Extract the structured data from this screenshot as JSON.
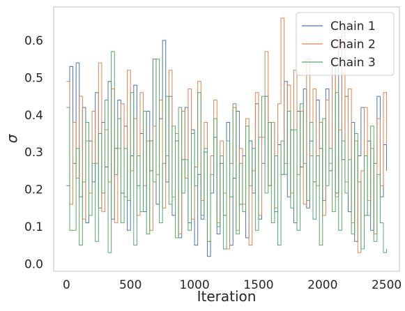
{
  "chart_data": {
    "type": "line",
    "xlabel": "Iteration",
    "ylabel": "σ",
    "xlim": [
      -100,
      2600
    ],
    "ylim": [
      -0.02,
      0.69
    ],
    "xticks": [
      0,
      500,
      1000,
      1500,
      2000,
      2500
    ],
    "yticks": [
      0.0,
      0.1,
      0.2,
      0.3,
      0.4,
      0.5,
      0.6
    ],
    "ytick_labels": [
      "0.0",
      "0.1",
      "0.2",
      "0.3",
      "0.4",
      "0.5",
      "0.6"
    ],
    "grid": false,
    "legend_position": "top-right",
    "series": [
      {
        "name": "Chain 1",
        "color": "#4c72b0",
        "x": [
          0,
          25,
          50,
          75,
          100,
          125,
          150,
          175,
          200,
          225,
          250,
          275,
          300,
          325,
          350,
          375,
          400,
          425,
          450,
          475,
          500,
          525,
          550,
          575,
          600,
          625,
          650,
          675,
          700,
          725,
          750,
          775,
          800,
          825,
          850,
          875,
          900,
          925,
          950,
          975,
          1000,
          1025,
          1050,
          1075,
          1100,
          1125,
          1150,
          1175,
          1200,
          1225,
          1250,
          1275,
          1300,
          1325,
          1350,
          1375,
          1400,
          1425,
          1450,
          1475,
          1500,
          1525,
          1550,
          1575,
          1600,
          1625,
          1650,
          1675,
          1700,
          1725,
          1750,
          1775,
          1800,
          1825,
          1850,
          1875,
          1900,
          1925,
          1950,
          1975,
          2000,
          2025,
          2050,
          2075,
          2100,
          2125,
          2150,
          2175,
          2200,
          2225,
          2250,
          2275,
          2300,
          2325,
          2350,
          2375,
          2400,
          2425,
          2450,
          2475,
          2499
        ],
        "y": [
          0.21,
          0.53,
          0.27,
          0.54,
          0.18,
          0.42,
          0.11,
          0.33,
          0.22,
          0.46,
          0.15,
          0.38,
          0.26,
          0.49,
          0.12,
          0.31,
          0.44,
          0.19,
          0.37,
          0.09,
          0.29,
          0.48,
          0.21,
          0.35,
          0.14,
          0.41,
          0.25,
          0.55,
          0.16,
          0.39,
          0.6,
          0.22,
          0.45,
          0.13,
          0.33,
          0.07,
          0.28,
          0.42,
          0.11,
          0.36,
          0.05,
          0.24,
          0.12,
          0.3,
          0.02,
          0.19,
          0.34,
          0.08,
          0.27,
          0.13,
          0.38,
          0.05,
          0.23,
          0.41,
          0.16,
          0.29,
          0.07,
          0.33,
          0.19,
          0.43,
          0.12,
          0.27,
          0.45,
          0.21,
          0.38,
          0.14,
          0.32,
          0.24,
          0.49,
          0.18,
          0.36,
          0.11,
          0.41,
          0.26,
          0.47,
          0.15,
          0.33,
          0.22,
          0.44,
          0.31,
          0.17,
          0.47,
          0.25,
          0.53,
          0.19,
          0.61,
          0.28,
          0.45,
          0.14,
          0.38,
          0.06,
          0.29,
          0.42,
          0.13,
          0.33,
          0.09,
          0.27,
          0.45,
          0.18,
          0.32,
          0.25
        ]
      },
      {
        "name": "Chain 2",
        "color": "#dd8452",
        "x": [
          0,
          25,
          50,
          75,
          100,
          125,
          150,
          175,
          200,
          225,
          250,
          275,
          300,
          325,
          350,
          375,
          400,
          425,
          450,
          475,
          500,
          525,
          550,
          575,
          600,
          625,
          650,
          675,
          700,
          725,
          750,
          775,
          800,
          825,
          850,
          875,
          900,
          925,
          950,
          975,
          1000,
          1025,
          1050,
          1075,
          1100,
          1125,
          1150,
          1175,
          1200,
          1225,
          1250,
          1275,
          1300,
          1325,
          1350,
          1375,
          1400,
          1425,
          1450,
          1475,
          1500,
          1525,
          1550,
          1575,
          1600,
          1625,
          1650,
          1675,
          1700,
          1725,
          1750,
          1775,
          1800,
          1825,
          1850,
          1875,
          1900,
          1925,
          1950,
          1975,
          2000,
          2025,
          2050,
          2075,
          2100,
          2125,
          2150,
          2175,
          2200,
          2225,
          2250,
          2275,
          2300,
          2325,
          2350,
          2375,
          2400,
          2425,
          2450,
          2475,
          2499
        ],
        "y": [
          0.49,
          0.16,
          0.38,
          0.23,
          0.45,
          0.12,
          0.33,
          0.19,
          0.41,
          0.27,
          0.54,
          0.14,
          0.36,
          0.22,
          0.47,
          0.11,
          0.31,
          0.43,
          0.18,
          0.52,
          0.25,
          0.39,
          0.13,
          0.46,
          0.21,
          0.33,
          0.09,
          0.37,
          0.24,
          0.44,
          0.15,
          0.29,
          0.52,
          0.18,
          0.35,
          0.08,
          0.41,
          0.23,
          0.47,
          0.12,
          0.26,
          0.49,
          0.17,
          0.38,
          0.06,
          0.29,
          0.44,
          0.11,
          0.33,
          0.19,
          0.04,
          0.27,
          0.42,
          0.09,
          0.31,
          0.16,
          0.39,
          0.05,
          0.25,
          0.46,
          0.13,
          0.34,
          0.57,
          0.21,
          0.38,
          0.15,
          0.43,
          0.66,
          0.27,
          0.48,
          0.19,
          0.52,
          0.24,
          0.41,
          0.16,
          0.55,
          0.29,
          0.47,
          0.21,
          0.38,
          0.13,
          0.44,
          0.27,
          0.51,
          0.18,
          0.36,
          0.62,
          0.22,
          0.47,
          0.11,
          0.33,
          0.03,
          0.25,
          0.42,
          0.17,
          0.31,
          0.08,
          0.39,
          0.21,
          0.46,
          0.32
        ]
      },
      {
        "name": "Chain 3",
        "color": "#55a868",
        "x": [
          0,
          25,
          50,
          75,
          100,
          125,
          150,
          175,
          200,
          225,
          250,
          275,
          300,
          325,
          350,
          375,
          400,
          425,
          450,
          475,
          500,
          525,
          550,
          575,
          600,
          625,
          650,
          675,
          700,
          725,
          750,
          775,
          800,
          825,
          850,
          875,
          900,
          925,
          950,
          975,
          1000,
          1025,
          1050,
          1075,
          1100,
          1125,
          1150,
          1175,
          1200,
          1225,
          1250,
          1275,
          1300,
          1325,
          1350,
          1375,
          1400,
          1425,
          1450,
          1475,
          1500,
          1525,
          1550,
          1575,
          1600,
          1625,
          1650,
          1675,
          1700,
          1725,
          1750,
          1775,
          1800,
          1825,
          1850,
          1875,
          1900,
          1925,
          1950,
          1975,
          2000,
          2025,
          2050,
          2075,
          2100,
          2125,
          2150,
          2175,
          2200,
          2225,
          2250,
          2275,
          2300,
          2325,
          2350,
          2375,
          2400,
          2425,
          2450,
          2475,
          2499
        ],
        "y": [
          0.42,
          0.09,
          0.09,
          0.31,
          0.05,
          0.22,
          0.38,
          0.13,
          0.27,
          0.06,
          0.35,
          0.19,
          0.44,
          0.03,
          0.57,
          0.24,
          0.39,
          0.11,
          0.31,
          0.17,
          0.46,
          0.05,
          0.29,
          0.14,
          0.41,
          0.08,
          0.33,
          0.22,
          0.55,
          0.11,
          0.27,
          0.45,
          0.16,
          0.37,
          0.07,
          0.42,
          0.19,
          0.28,
          0.09,
          0.35,
          0.21,
          0.46,
          0.13,
          0.31,
          0.06,
          0.24,
          0.39,
          0.1,
          0.29,
          0.04,
          0.33,
          0.18,
          0.43,
          0.08,
          0.27,
          0.14,
          0.37,
          0.21,
          0.31,
          0.09,
          0.34,
          0.45,
          0.19,
          0.38,
          0.11,
          0.29,
          0.05,
          0.33,
          0.24,
          0.41,
          0.15,
          0.36,
          0.09,
          0.43,
          0.27,
          0.17,
          0.38,
          0.12,
          0.29,
          0.05,
          0.39,
          0.21,
          0.31,
          0.14,
          0.46,
          0.09,
          0.33,
          0.19,
          0.28,
          0.08,
          0.35,
          0.22,
          0.04,
          0.29,
          0.13,
          0.37,
          0.06,
          0.24,
          0.11,
          0.03,
          0.04
        ]
      }
    ]
  }
}
